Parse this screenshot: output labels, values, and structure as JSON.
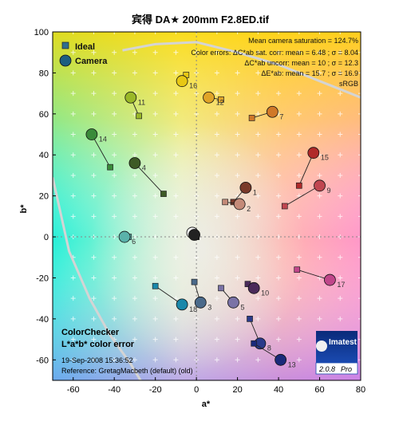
{
  "chart_data": {
    "type": "scatter",
    "title": "宾得 DA★ 200mm F2.8ED.tif",
    "xlabel": "a*",
    "ylabel": "b*",
    "xlim": [
      -70,
      80
    ],
    "ylim": [
      -70,
      100
    ],
    "xticks": [
      -60,
      -40,
      -20,
      0,
      20,
      40,
      60,
      80
    ],
    "yticks": [
      -60,
      -40,
      -20,
      0,
      20,
      40,
      60,
      80,
      100
    ],
    "legend": {
      "position": "top-left",
      "entries": [
        {
          "label": "Ideal",
          "marker": "square",
          "color": "#2f6e8e"
        },
        {
          "label": "Camera",
          "marker": "circle",
          "color": "#1d5f80"
        }
      ]
    },
    "annotations": [
      "Mean camera saturation = 124.7%",
      "Color errors:  ΔC*ab sat. corr:  mean = 6.48 ;  σ = 8.04",
      "ΔC*ab uncorr:  mean = 10 ;  σ = 12.3",
      "ΔE*ab:  mean = 15.7 ;  σ = 16.9",
      "sRGB"
    ],
    "gamut_label": "sRGB",
    "footer": {
      "title1": "ColorChecker",
      "title2": "L*a*b* color error",
      "date": "19-Sep-2008 15:36:52",
      "reference": "Reference: GretagMacbeth (default) (old)"
    },
    "logo": {
      "name": "Imatest",
      "version": "2.0.8",
      "edition": "Pro"
    },
    "patches": [
      {
        "id": "1",
        "ideal": [
          18,
          17
        ],
        "camera": [
          24,
          24
        ],
        "color": "#7a3a2a"
      },
      {
        "id": "2",
        "ideal": [
          14,
          17
        ],
        "camera": [
          21,
          16
        ],
        "color": "#c48a78"
      },
      {
        "id": "3",
        "ideal": [
          -1,
          -22
        ],
        "camera": [
          2,
          -32
        ],
        "color": "#4a6a8a"
      },
      {
        "id": "4",
        "ideal": [
          -16,
          21
        ],
        "camera": [
          -30,
          36
        ],
        "color": "#3d5a26"
      },
      {
        "id": "5",
        "ideal": [
          12,
          -25
        ],
        "camera": [
          18,
          -32
        ],
        "color": "#7a72a6"
      },
      {
        "id": "6",
        "ideal": [
          -33,
          0
        ],
        "camera": [
          -35,
          0
        ],
        "color": "#5ab2aa"
      },
      {
        "id": "7",
        "ideal": [
          27,
          58
        ],
        "camera": [
          37,
          61
        ],
        "color": "#d07828"
      },
      {
        "id": "8",
        "ideal": [
          26,
          -40
        ],
        "camera": [
          31,
          -52
        ],
        "color": "#2a3a8a"
      },
      {
        "id": "9",
        "ideal": [
          43,
          15
        ],
        "camera": [
          60,
          25
        ],
        "color": "#c04650"
      },
      {
        "id": "10",
        "ideal": [
          25,
          -23
        ],
        "camera": [
          28,
          -25
        ],
        "color": "#4a2a5a"
      },
      {
        "id": "11",
        "ideal": [
          -28,
          59
        ],
        "camera": [
          -32,
          68
        ],
        "color": "#9ab828"
      },
      {
        "id": "12",
        "ideal": [
          12,
          67
        ],
        "camera": [
          6,
          68
        ],
        "color": "#e0a428"
      },
      {
        "id": "13",
        "ideal": [
          28,
          -52
        ],
        "camera": [
          41,
          -60
        ],
        "color": "#1a2a7a"
      },
      {
        "id": "14",
        "ideal": [
          -42,
          34
        ],
        "camera": [
          -51,
          50
        ],
        "color": "#3a8a3a"
      },
      {
        "id": "15",
        "ideal": [
          50,
          25
        ],
        "camera": [
          57,
          41
        ],
        "color": "#b02a2a"
      },
      {
        "id": "16",
        "ideal": [
          -5,
          79
        ],
        "camera": [
          -7,
          76
        ],
        "color": "#e8c814"
      },
      {
        "id": "17",
        "ideal": [
          49,
          -16
        ],
        "camera": [
          65,
          -21
        ],
        "color": "#c0468a"
      },
      {
        "id": "18",
        "ideal": [
          -20,
          -24
        ],
        "camera": [
          -7,
          -33
        ],
        "color": "#1a88aa"
      },
      {
        "id": "W",
        "ideal": [
          0,
          0
        ],
        "camera": [
          -2,
          2
        ],
        "color": "#f2f2f2"
      },
      {
        "id": "K",
        "ideal": [
          0,
          0
        ],
        "camera": [
          -1,
          1
        ],
        "color": "#222222"
      }
    ]
  }
}
